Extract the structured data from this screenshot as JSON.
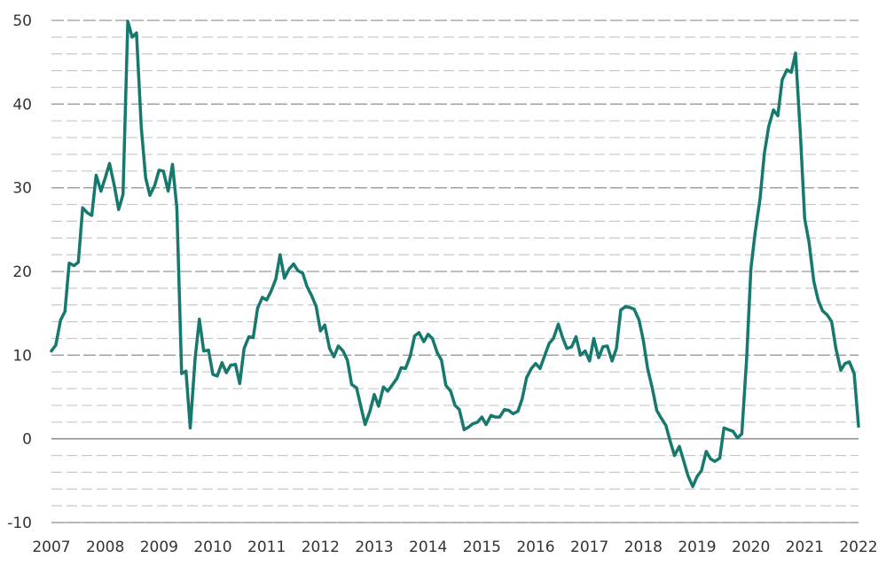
{
  "chart_data": {
    "type": "line",
    "title": "",
    "xlabel": "",
    "ylabel": "",
    "xlim": [
      2007,
      2022
    ],
    "ylim": [
      -10,
      50
    ],
    "x_ticks": [
      "2007",
      "2008",
      "2009",
      "2010",
      "2011",
      "2012",
      "2013",
      "2014",
      "2015",
      "2016",
      "2017",
      "2018",
      "2019",
      "2020",
      "2021",
      "2022"
    ],
    "y_ticks": [
      "50",
      "40",
      "30",
      "20",
      "10",
      "0",
      "-10"
    ],
    "grid": "horizontal dashed, minor every 2",
    "series": [
      {
        "name": "",
        "color": "#17796e",
        "points": [
          [
            2007.0,
            10.5
          ],
          [
            2007.08,
            11.2
          ],
          [
            2007.17,
            14.2
          ],
          [
            2007.25,
            15.2
          ],
          [
            2007.33,
            21.0
          ],
          [
            2007.42,
            20.7
          ],
          [
            2007.5,
            21.1
          ],
          [
            2007.58,
            27.6
          ],
          [
            2007.67,
            27.0
          ],
          [
            2007.75,
            26.7
          ],
          [
            2007.83,
            31.5
          ],
          [
            2007.92,
            29.6
          ],
          [
            2008.0,
            31.2
          ],
          [
            2008.08,
            32.9
          ],
          [
            2008.17,
            30.2
          ],
          [
            2008.25,
            27.4
          ],
          [
            2008.33,
            29.2
          ],
          [
            2008.42,
            49.9
          ],
          [
            2008.5,
            48.0
          ],
          [
            2008.58,
            48.5
          ],
          [
            2008.67,
            37.2
          ],
          [
            2008.75,
            31.2
          ],
          [
            2008.83,
            29.1
          ],
          [
            2008.92,
            30.3
          ],
          [
            2009.0,
            32.1
          ],
          [
            2009.08,
            32.0
          ],
          [
            2009.17,
            29.6
          ],
          [
            2009.25,
            32.8
          ],
          [
            2009.33,
            27.6
          ],
          [
            2009.42,
            7.8
          ],
          [
            2009.5,
            8.1
          ],
          [
            2009.58,
            1.3
          ],
          [
            2009.67,
            9.6
          ],
          [
            2009.75,
            14.3
          ],
          [
            2009.83,
            10.5
          ],
          [
            2009.92,
            10.6
          ],
          [
            2010.0,
            7.7
          ],
          [
            2010.08,
            7.5
          ],
          [
            2010.17,
            9.1
          ],
          [
            2010.25,
            7.9
          ],
          [
            2010.33,
            8.8
          ],
          [
            2010.42,
            8.9
          ],
          [
            2010.5,
            6.6
          ],
          [
            2010.58,
            10.8
          ],
          [
            2010.67,
            12.2
          ],
          [
            2010.75,
            12.1
          ],
          [
            2010.83,
            15.6
          ],
          [
            2010.92,
            16.9
          ],
          [
            2011.0,
            16.6
          ],
          [
            2011.08,
            17.6
          ],
          [
            2011.17,
            19.1
          ],
          [
            2011.25,
            22.0
          ],
          [
            2011.33,
            19.2
          ],
          [
            2011.42,
            20.3
          ],
          [
            2011.5,
            20.9
          ],
          [
            2011.58,
            20.1
          ],
          [
            2011.67,
            19.8
          ],
          [
            2011.75,
            18.2
          ],
          [
            2011.83,
            17.2
          ],
          [
            2011.92,
            15.8
          ],
          [
            2012.0,
            12.9
          ],
          [
            2012.08,
            13.6
          ],
          [
            2012.17,
            10.8
          ],
          [
            2012.25,
            9.8
          ],
          [
            2012.33,
            11.1
          ],
          [
            2012.42,
            10.5
          ],
          [
            2012.5,
            9.4
          ],
          [
            2012.58,
            6.5
          ],
          [
            2012.67,
            6.1
          ],
          [
            2012.75,
            3.9
          ],
          [
            2012.83,
            1.7
          ],
          [
            2012.92,
            3.3
          ],
          [
            2013.0,
            5.3
          ],
          [
            2013.08,
            3.9
          ],
          [
            2013.17,
            6.2
          ],
          [
            2013.25,
            5.7
          ],
          [
            2013.33,
            6.4
          ],
          [
            2013.42,
            7.2
          ],
          [
            2013.5,
            8.5
          ],
          [
            2013.58,
            8.4
          ],
          [
            2013.67,
            9.9
          ],
          [
            2013.75,
            12.3
          ],
          [
            2013.83,
            12.7
          ],
          [
            2013.92,
            11.6
          ],
          [
            2014.0,
            12.5
          ],
          [
            2014.08,
            12.0
          ],
          [
            2014.17,
            10.3
          ],
          [
            2014.25,
            9.4
          ],
          [
            2014.33,
            6.4
          ],
          [
            2014.42,
            5.7
          ],
          [
            2014.5,
            4.0
          ],
          [
            2014.58,
            3.5
          ],
          [
            2014.67,
            1.1
          ],
          [
            2014.75,
            1.4
          ],
          [
            2014.83,
            1.8
          ],
          [
            2014.92,
            2.0
          ],
          [
            2015.0,
            2.6
          ],
          [
            2015.08,
            1.7
          ],
          [
            2015.17,
            2.8
          ],
          [
            2015.25,
            2.6
          ],
          [
            2015.33,
            2.6
          ],
          [
            2015.42,
            3.5
          ],
          [
            2015.5,
            3.4
          ],
          [
            2015.58,
            3.0
          ],
          [
            2015.67,
            3.3
          ],
          [
            2015.75,
            4.8
          ],
          [
            2015.83,
            7.3
          ],
          [
            2015.92,
            8.4
          ],
          [
            2016.0,
            9.0
          ],
          [
            2016.08,
            8.4
          ],
          [
            2016.17,
            10.0
          ],
          [
            2016.25,
            11.4
          ],
          [
            2016.33,
            12.0
          ],
          [
            2016.42,
            13.7
          ],
          [
            2016.5,
            12.1
          ],
          [
            2016.58,
            10.8
          ],
          [
            2016.67,
            11.0
          ],
          [
            2016.75,
            12.2
          ],
          [
            2016.83,
            10.0
          ],
          [
            2016.92,
            10.5
          ],
          [
            2017.0,
            9.3
          ],
          [
            2017.08,
            12.0
          ],
          [
            2017.17,
            9.7
          ],
          [
            2017.25,
            11.0
          ],
          [
            2017.33,
            11.1
          ],
          [
            2017.42,
            9.3
          ],
          [
            2017.5,
            10.8
          ],
          [
            2017.58,
            15.4
          ],
          [
            2017.67,
            15.8
          ],
          [
            2017.75,
            15.7
          ],
          [
            2017.83,
            15.5
          ],
          [
            2017.92,
            14.2
          ],
          [
            2018.0,
            11.8
          ],
          [
            2018.08,
            8.4
          ],
          [
            2018.17,
            6.0
          ],
          [
            2018.25,
            3.4
          ],
          [
            2018.33,
            2.5
          ],
          [
            2018.42,
            1.6
          ],
          [
            2018.5,
            -0.3
          ],
          [
            2018.58,
            -2.0
          ],
          [
            2018.67,
            -0.9
          ],
          [
            2018.75,
            -2.6
          ],
          [
            2018.83,
            -4.4
          ],
          [
            2018.92,
            -5.7
          ],
          [
            2019.0,
            -4.5
          ],
          [
            2019.08,
            -3.8
          ],
          [
            2019.17,
            -1.5
          ],
          [
            2019.25,
            -2.4
          ],
          [
            2019.33,
            -2.7
          ],
          [
            2019.42,
            -2.3
          ],
          [
            2019.5,
            1.3
          ],
          [
            2019.58,
            1.1
          ],
          [
            2019.67,
            0.9
          ],
          [
            2019.75,
            0.1
          ],
          [
            2019.83,
            0.6
          ],
          [
            2019.92,
            9.5
          ],
          [
            2020.0,
            20.4
          ],
          [
            2020.08,
            24.7
          ],
          [
            2020.17,
            28.7
          ],
          [
            2020.25,
            34.1
          ],
          [
            2020.33,
            37.3
          ],
          [
            2020.42,
            39.3
          ],
          [
            2020.5,
            38.6
          ],
          [
            2020.58,
            42.9
          ],
          [
            2020.67,
            44.1
          ],
          [
            2020.75,
            43.8
          ],
          [
            2020.83,
            46.1
          ],
          [
            2020.92,
            36.3
          ],
          [
            2021.0,
            26.3
          ],
          [
            2021.08,
            23.5
          ],
          [
            2021.17,
            18.8
          ],
          [
            2021.25,
            16.6
          ],
          [
            2021.33,
            15.3
          ],
          [
            2021.42,
            14.8
          ],
          [
            2021.5,
            14.0
          ],
          [
            2021.58,
            10.8
          ],
          [
            2021.67,
            8.2
          ],
          [
            2021.75,
            9.0
          ],
          [
            2021.83,
            9.2
          ],
          [
            2021.92,
            7.8
          ],
          [
            2022.0,
            1.5
          ]
        ]
      }
    ]
  }
}
